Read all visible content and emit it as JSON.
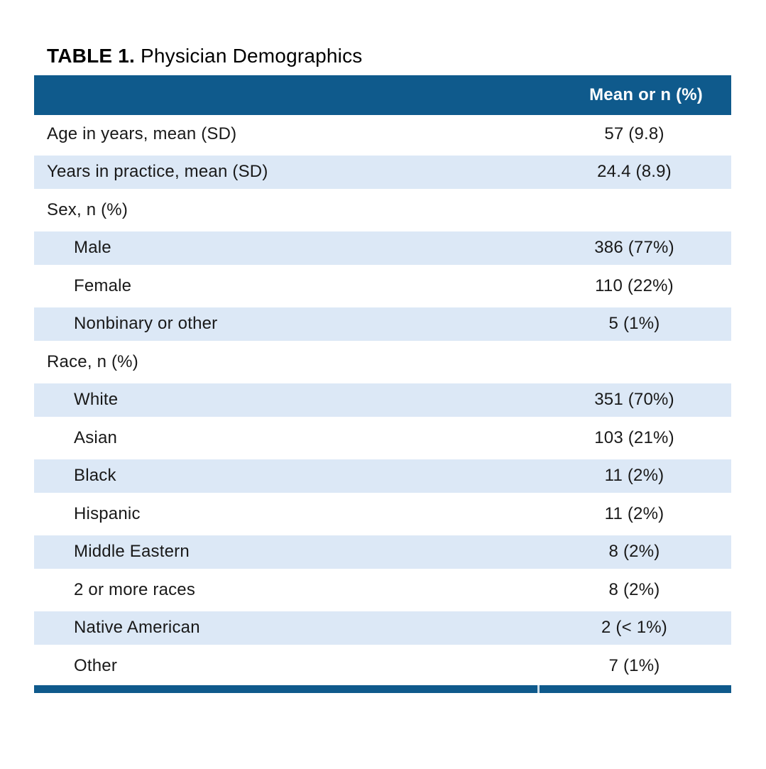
{
  "title": {
    "label": "TABLE 1.",
    "text": "Physician Demographics"
  },
  "table": {
    "value_header": "Mean or n (%)",
    "rows": [
      {
        "label": "Age in years, mean (SD)",
        "value": "57 (9.8)",
        "indent": false
      },
      {
        "label": "Years in practice, mean (SD)",
        "value": "24.4 (8.9)",
        "indent": false
      },
      {
        "label": "Sex, n (%)",
        "value": "",
        "indent": false
      },
      {
        "label": "Male",
        "value": "386 (77%)",
        "indent": true
      },
      {
        "label": "Female",
        "value": "110 (22%)",
        "indent": true
      },
      {
        "label": "Nonbinary or other",
        "value": "5 (1%)",
        "indent": true
      },
      {
        "label": "Race, n (%)",
        "value": "",
        "indent": false
      },
      {
        "label": "White",
        "value": "351 (70%)",
        "indent": true
      },
      {
        "label": "Asian",
        "value": "103 (21%)",
        "indent": true
      },
      {
        "label": "Black",
        "value": "11 (2%)",
        "indent": true
      },
      {
        "label": "Hispanic",
        "value": "11 (2%)",
        "indent": true
      },
      {
        "label": "Middle Eastern",
        "value": "8 (2%)",
        "indent": true
      },
      {
        "label": "2 or more races",
        "value": "8 (2%)",
        "indent": true
      },
      {
        "label": "Native American",
        "value": "2 (< 1%)",
        "indent": true
      },
      {
        "label": "Other",
        "value": "7 (1%)",
        "indent": true
      }
    ]
  },
  "colors": {
    "header_bg": "#0f5a8c",
    "stripe_bg": "#dce8f6",
    "header_text": "#ffffff",
    "body_text": "#191919",
    "accent_bar": "#0f5a8c"
  }
}
